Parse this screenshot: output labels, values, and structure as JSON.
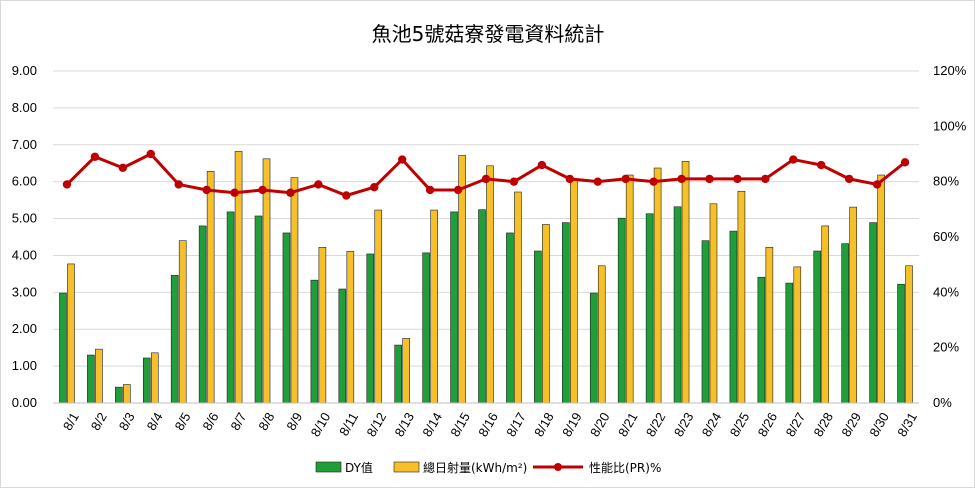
{
  "chart_data": {
    "type": "bar",
    "title": "魚池5號菇寮發電資料統計",
    "categories": [
      "8/1",
      "8/2",
      "8/3",
      "8/4",
      "8/5",
      "8/6",
      "8/7",
      "8/8",
      "8/9",
      "8/10",
      "8/11",
      "8/12",
      "8/13",
      "8/14",
      "8/15",
      "8/16",
      "8/17",
      "8/18",
      "8/19",
      "8/20",
      "8/21",
      "8/22",
      "8/23",
      "8/24",
      "8/25",
      "8/26",
      "8/27",
      "8/28",
      "8/29",
      "8/30",
      "8/31"
    ],
    "series": [
      {
        "name": "DY值",
        "type": "bar",
        "axis": "left",
        "color": "#1f9e3a",
        "values": [
          2.98,
          1.3,
          0.43,
          1.22,
          3.46,
          4.8,
          5.18,
          5.07,
          4.61,
          3.33,
          3.09,
          4.04,
          1.57,
          4.07,
          5.18,
          5.24,
          4.61,
          4.12,
          4.89,
          2.98,
          5.01,
          5.13,
          5.32,
          4.4,
          4.66,
          3.41,
          3.25,
          4.12,
          4.32,
          4.89,
          3.22
        ]
      },
      {
        "name": "總日射量(kWh/m²)",
        "type": "bar",
        "axis": "left",
        "color": "#f5c02a",
        "values": [
          3.77,
          1.46,
          0.5,
          1.36,
          4.4,
          6.28,
          6.82,
          6.62,
          6.11,
          4.22,
          4.11,
          5.23,
          1.75,
          5.23,
          6.71,
          6.43,
          5.72,
          4.84,
          6.03,
          3.72,
          6.18,
          6.37,
          6.55,
          5.4,
          5.74,
          4.22,
          3.69,
          4.8,
          5.31,
          6.18,
          3.72
        ]
      },
      {
        "name": "性能比(PR)%",
        "type": "line",
        "axis": "right",
        "color": "#c00000",
        "values": [
          79,
          89,
          85,
          90,
          79,
          77,
          76,
          77,
          76,
          79,
          75,
          78,
          88,
          77,
          77,
          81,
          80,
          86,
          81,
          80,
          81,
          80,
          81,
          81,
          81,
          81,
          88,
          86,
          81,
          79,
          87
        ]
      }
    ],
    "left_axis": {
      "min": 0,
      "max": 9,
      "step": 1,
      "ticks": [
        "0.00",
        "1.00",
        "2.00",
        "3.00",
        "4.00",
        "5.00",
        "6.00",
        "7.00",
        "8.00",
        "9.00"
      ]
    },
    "right_axis": {
      "min": 0,
      "max": 120,
      "step": 20,
      "ticks": [
        "0%",
        "20%",
        "40%",
        "60%",
        "80%",
        "100%",
        "120%"
      ]
    },
    "grid": true,
    "legend": "bottom"
  }
}
